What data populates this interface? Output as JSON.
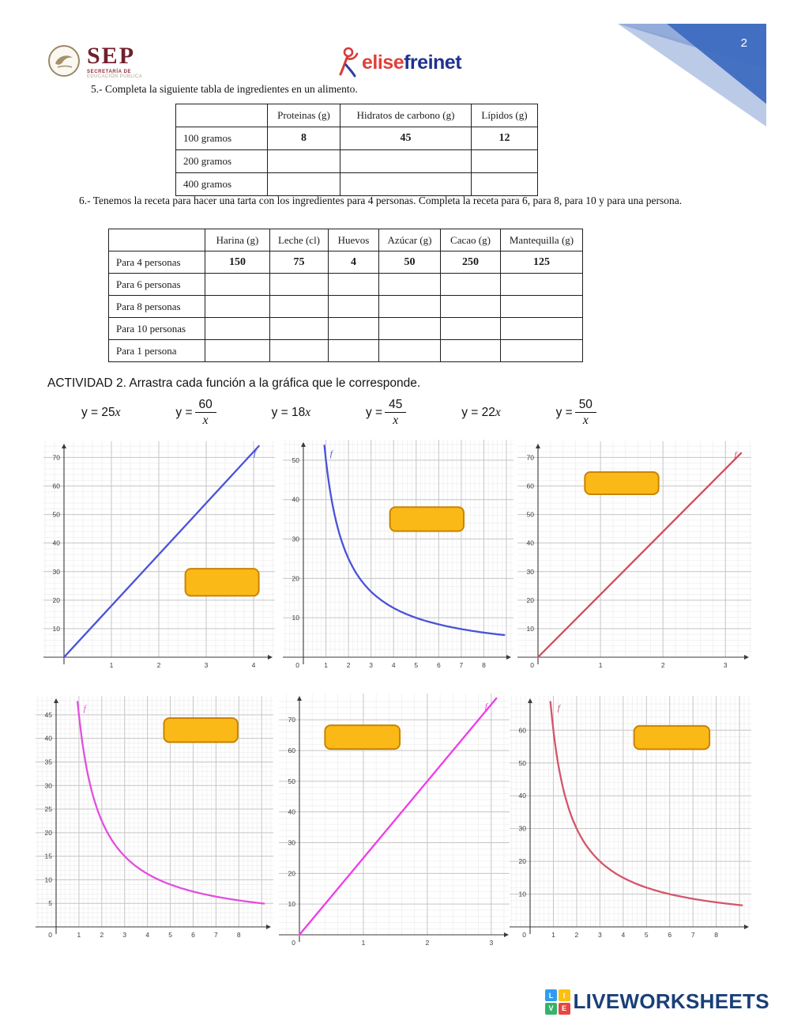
{
  "page": {
    "number": "2"
  },
  "header": {
    "sep": {
      "acronym": "SEP",
      "line1": "SECRETARÍA DE",
      "line2": "EDUCACIÓN PÚBLICA"
    },
    "brand": {
      "word1": "elise",
      "word2": "freinet"
    }
  },
  "q5": {
    "prompt": "5.- Completa la siguiente tabla de ingredientes en un alimento.",
    "table": {
      "headers": [
        "",
        "Proteinas (g)",
        "Hidratos de carbono (g)",
        "Lípidos (g)"
      ],
      "rows": [
        {
          "label": "100 gramos",
          "values": [
            "8",
            "45",
            "12"
          ]
        },
        {
          "label": "200 gramos",
          "values": [
            "",
            "",
            ""
          ]
        },
        {
          "label": "400 gramos",
          "values": [
            "",
            "",
            ""
          ]
        }
      ]
    }
  },
  "q6": {
    "prompt": "6.- Tenemos la receta para hacer una tarta con los ingredientes para 4 personas. Completa la receta para 6, para 8, para 10 y para una persona.",
    "table": {
      "headers": [
        "",
        "Harina (g)",
        "Leche (cl)",
        "Huevos",
        "Azúcar (g)",
        "Cacao (g)",
        "Mantequilla (g)"
      ],
      "rows": [
        {
          "label": "Para 4 personas",
          "values": [
            "150",
            "75",
            "4",
            "50",
            "250",
            "125"
          ]
        },
        {
          "label": "Para 6 personas",
          "values": [
            "",
            "",
            "",
            "",
            "",
            ""
          ]
        },
        {
          "label": "Para 8 personas",
          "values": [
            "",
            "",
            "",
            "",
            "",
            ""
          ]
        },
        {
          "label": "Para 10 personas",
          "values": [
            "",
            "",
            "",
            "",
            "",
            ""
          ]
        },
        {
          "label": "Para 1 persona",
          "values": [
            "",
            "",
            "",
            "",
            "",
            ""
          ]
        }
      ]
    }
  },
  "activity2": {
    "title": "ACTIVIDAD 2. Arrastra cada función a la gráfica que le corresponde.",
    "functions": [
      {
        "label": "y = 25x",
        "lhs": "y = ",
        "expr": "25",
        "fraction": false
      },
      {
        "label": "y = 60/x",
        "lhs": "y = ",
        "numerator": "60",
        "denominator": "x",
        "fraction": true
      },
      {
        "label": "y = 18x",
        "lhs": "y = ",
        "expr": "18",
        "fraction": false
      },
      {
        "label": "y = 45/x",
        "lhs": "y = ",
        "numerator": "45",
        "denominator": "x",
        "fraction": true
      },
      {
        "label": "y = 22x",
        "lhs": "y = ",
        "expr": "22",
        "fraction": false
      },
      {
        "label": "y = 50/x",
        "lhs": "y = ",
        "numerator": "50",
        "denominator": "x",
        "fraction": true
      }
    ]
  },
  "dropzone_style": {
    "fill": "#fbb917",
    "border": "#c98400"
  },
  "chart_data": [
    {
      "id": "graph-1",
      "type": "line",
      "curve": "linear",
      "equation": "y = 18x",
      "k": 18,
      "color": "#4a52d9",
      "x_range": [
        0,
        4.3
      ],
      "y_range": [
        0,
        74
      ],
      "x_ticks": [
        1,
        2,
        3,
        4
      ],
      "y_ticks": [
        10,
        20,
        30,
        40,
        50,
        60,
        70
      ],
      "show_zero": false,
      "points": [
        [
          0,
          0
        ],
        [
          1,
          18
        ],
        [
          2,
          36
        ],
        [
          3,
          54
        ],
        [
          4,
          72
        ]
      ],
      "f_label": {
        "text": "f",
        "x": 4.0,
        "y": 70.5
      },
      "dropzone": {
        "x": 2.56,
        "y": 21.5,
        "w": 1.55,
        "h": 9.5
      }
    },
    {
      "id": "graph-2",
      "type": "line",
      "curve": "inverse",
      "equation": "y = 50/x",
      "k": 50,
      "color": "#4a52d9",
      "x_range": [
        0,
        9.0
      ],
      "y_range": [
        0,
        54
      ],
      "x_ticks": [
        1,
        2,
        3,
        4,
        5,
        6,
        7,
        8
      ],
      "y_ticks": [
        10,
        20,
        30,
        40,
        50
      ],
      "show_zero": true,
      "points": [
        [
          1,
          50
        ],
        [
          2,
          25
        ],
        [
          5,
          10
        ],
        [
          8,
          6.25
        ]
      ],
      "f_label": {
        "text": "f",
        "x": 1.18,
        "y": 51
      },
      "dropzone": {
        "x": 3.84,
        "y": 32,
        "w": 3.27,
        "h": 6.1
      }
    },
    {
      "id": "graph-3",
      "type": "line",
      "curve": "linear",
      "equation": "y = 22x",
      "k": 22,
      "color": "#d44a60",
      "x_range": [
        0,
        3.3
      ],
      "y_range": [
        0,
        74
      ],
      "x_ticks": [
        1,
        2,
        3
      ],
      "y_ticks": [
        10,
        20,
        30,
        40,
        50,
        60,
        70
      ],
      "show_zero": true,
      "points": [
        [
          0,
          0
        ],
        [
          1,
          22
        ],
        [
          2,
          44
        ],
        [
          3,
          66
        ]
      ],
      "f_label": {
        "text": "f",
        "x": 3.14,
        "y": 70
      },
      "dropzone": {
        "x": 0.75,
        "y": 57.1,
        "w": 1.18,
        "h": 7.8
      }
    },
    {
      "id": "graph-4",
      "type": "line",
      "curve": "inverse",
      "equation": "y = 45/x",
      "k": 45,
      "color": "#e24fdf",
      "x_range": [
        0,
        9.2
      ],
      "y_range": [
        0,
        48
      ],
      "x_ticks": [
        1,
        2,
        3,
        4,
        5,
        6,
        7,
        8
      ],
      "y_ticks": [
        5,
        10,
        15,
        20,
        25,
        30,
        35,
        40,
        45
      ],
      "show_zero": true,
      "points": [
        [
          1,
          45
        ],
        [
          2,
          22.5
        ],
        [
          3,
          15
        ],
        [
          9,
          5
        ]
      ],
      "f_label": {
        "text": "f",
        "x": 1.2,
        "y": 45.8
      },
      "dropzone": {
        "x": 4.72,
        "y": 39.2,
        "w": 3.23,
        "h": 5.1
      }
    },
    {
      "id": "graph-5",
      "type": "line",
      "curve": "linear",
      "equation": "y = 25x",
      "k": 25,
      "color": "#ee3cea",
      "x_range": [
        0,
        3.2
      ],
      "y_range": [
        0,
        77
      ],
      "x_ticks": [
        1,
        2,
        3
      ],
      "y_ticks": [
        10,
        20,
        30,
        40,
        50,
        60,
        70
      ],
      "show_zero": true,
      "points": [
        [
          0,
          0
        ],
        [
          1,
          25
        ],
        [
          2,
          50
        ],
        [
          3,
          75
        ]
      ],
      "f_label": {
        "text": "f",
        "x": 2.9,
        "y": 73.5
      },
      "dropzone": {
        "x": 0.4,
        "y": 60.5,
        "w": 1.17,
        "h": 7.7
      }
    },
    {
      "id": "graph-6",
      "type": "line",
      "curve": "inverse",
      "equation": "y = 60/x",
      "k": 60,
      "color": "#d4556a",
      "x_range": [
        0,
        9.2
      ],
      "y_range": [
        0,
        69
      ],
      "x_ticks": [
        1,
        2,
        3,
        4,
        5,
        6,
        7,
        8
      ],
      "y_ticks": [
        10,
        20,
        30,
        40,
        50,
        60
      ],
      "show_zero": true,
      "points": [
        [
          1,
          60
        ],
        [
          2,
          30
        ],
        [
          3,
          20
        ],
        [
          6,
          10
        ]
      ],
      "f_label": {
        "text": "f",
        "x": 1.18,
        "y": 66
      },
      "dropzone": {
        "x": 4.47,
        "y": 54.2,
        "w": 3.24,
        "h": 7.1
      }
    }
  ],
  "footer": {
    "blocks": [
      {
        "letter": "L",
        "color": "#2f9cf0"
      },
      {
        "letter": "I",
        "color": "#fdc011"
      },
      {
        "letter": "V",
        "color": "#34b36a"
      },
      {
        "letter": "E",
        "color": "#e8463e"
      }
    ],
    "brand": "LIVEWORKSHEETS"
  }
}
